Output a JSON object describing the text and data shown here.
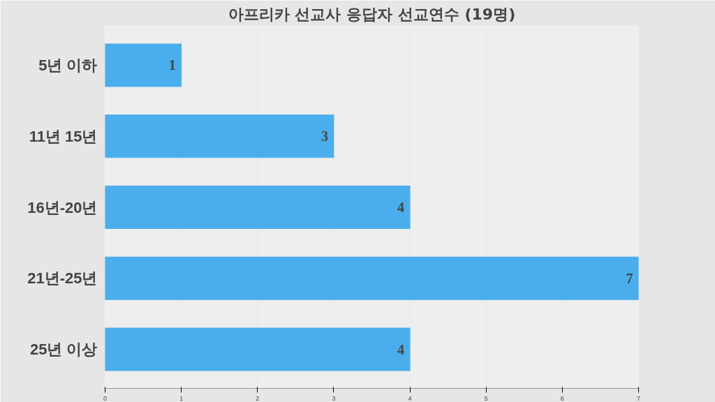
{
  "chart_data": {
    "type": "bar",
    "orientation": "horizontal",
    "title": "아프리카 선교사 응답자 선교연수 (19명)",
    "categories": [
      "5년 이하",
      "11년 15년",
      "16년-20년",
      "21년-25년",
      "25년 이상"
    ],
    "values": [
      1,
      3,
      4,
      7,
      4
    ],
    "color": "#4aaeec",
    "xlim": [
      0,
      7
    ],
    "xticks": [
      0,
      1,
      2,
      3,
      4,
      5,
      6,
      7
    ],
    "grid": "x",
    "data_labels": true
  }
}
